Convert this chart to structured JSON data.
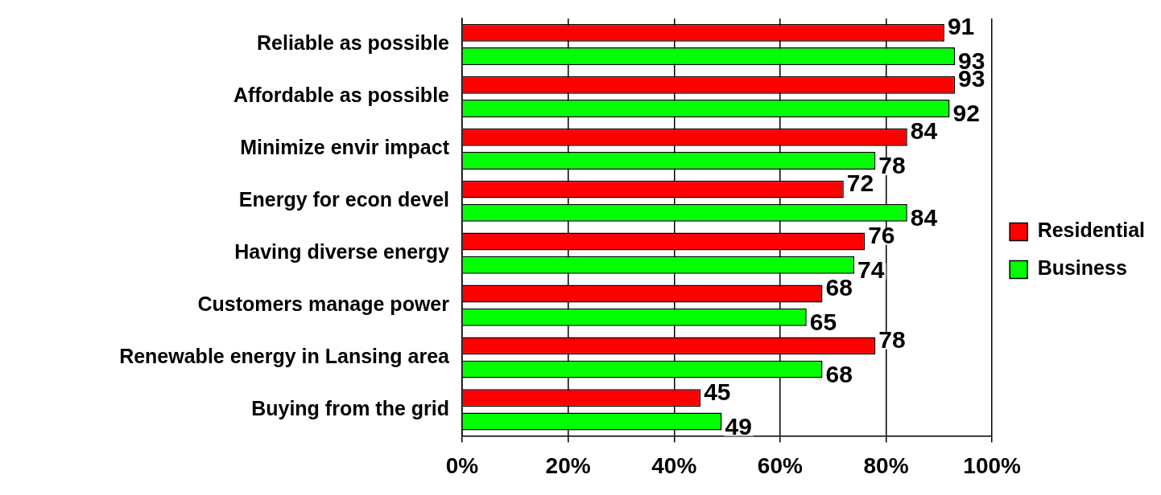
{
  "chart_data": {
    "type": "bar",
    "orientation": "horizontal",
    "categories": [
      "Reliable as possible",
      "Affordable as possible",
      "Minimize envir impact",
      "Energy for econ devel",
      "Having diverse energy",
      "Customers manage power",
      "Renewable energy in Lansing area",
      "Buying from the grid"
    ],
    "series": [
      {
        "name": "Residential",
        "color": "#ff0000",
        "values": [
          91,
          93,
          84,
          72,
          76,
          68,
          78,
          45
        ]
      },
      {
        "name": "Business",
        "color": "#00ff00",
        "values": [
          93,
          92,
          78,
          84,
          74,
          65,
          68,
          49
        ]
      }
    ],
    "xlim": [
      0,
      100
    ],
    "xticks": [
      {
        "value": 0,
        "label": "0%"
      },
      {
        "value": 20,
        "label": "20%"
      },
      {
        "value": 40,
        "label": "40%"
      },
      {
        "value": 60,
        "label": "60%"
      },
      {
        "value": 80,
        "label": "80%"
      },
      {
        "value": 100,
        "label": "100%"
      }
    ],
    "grid": "x",
    "legend": "right",
    "data_labels": true
  }
}
